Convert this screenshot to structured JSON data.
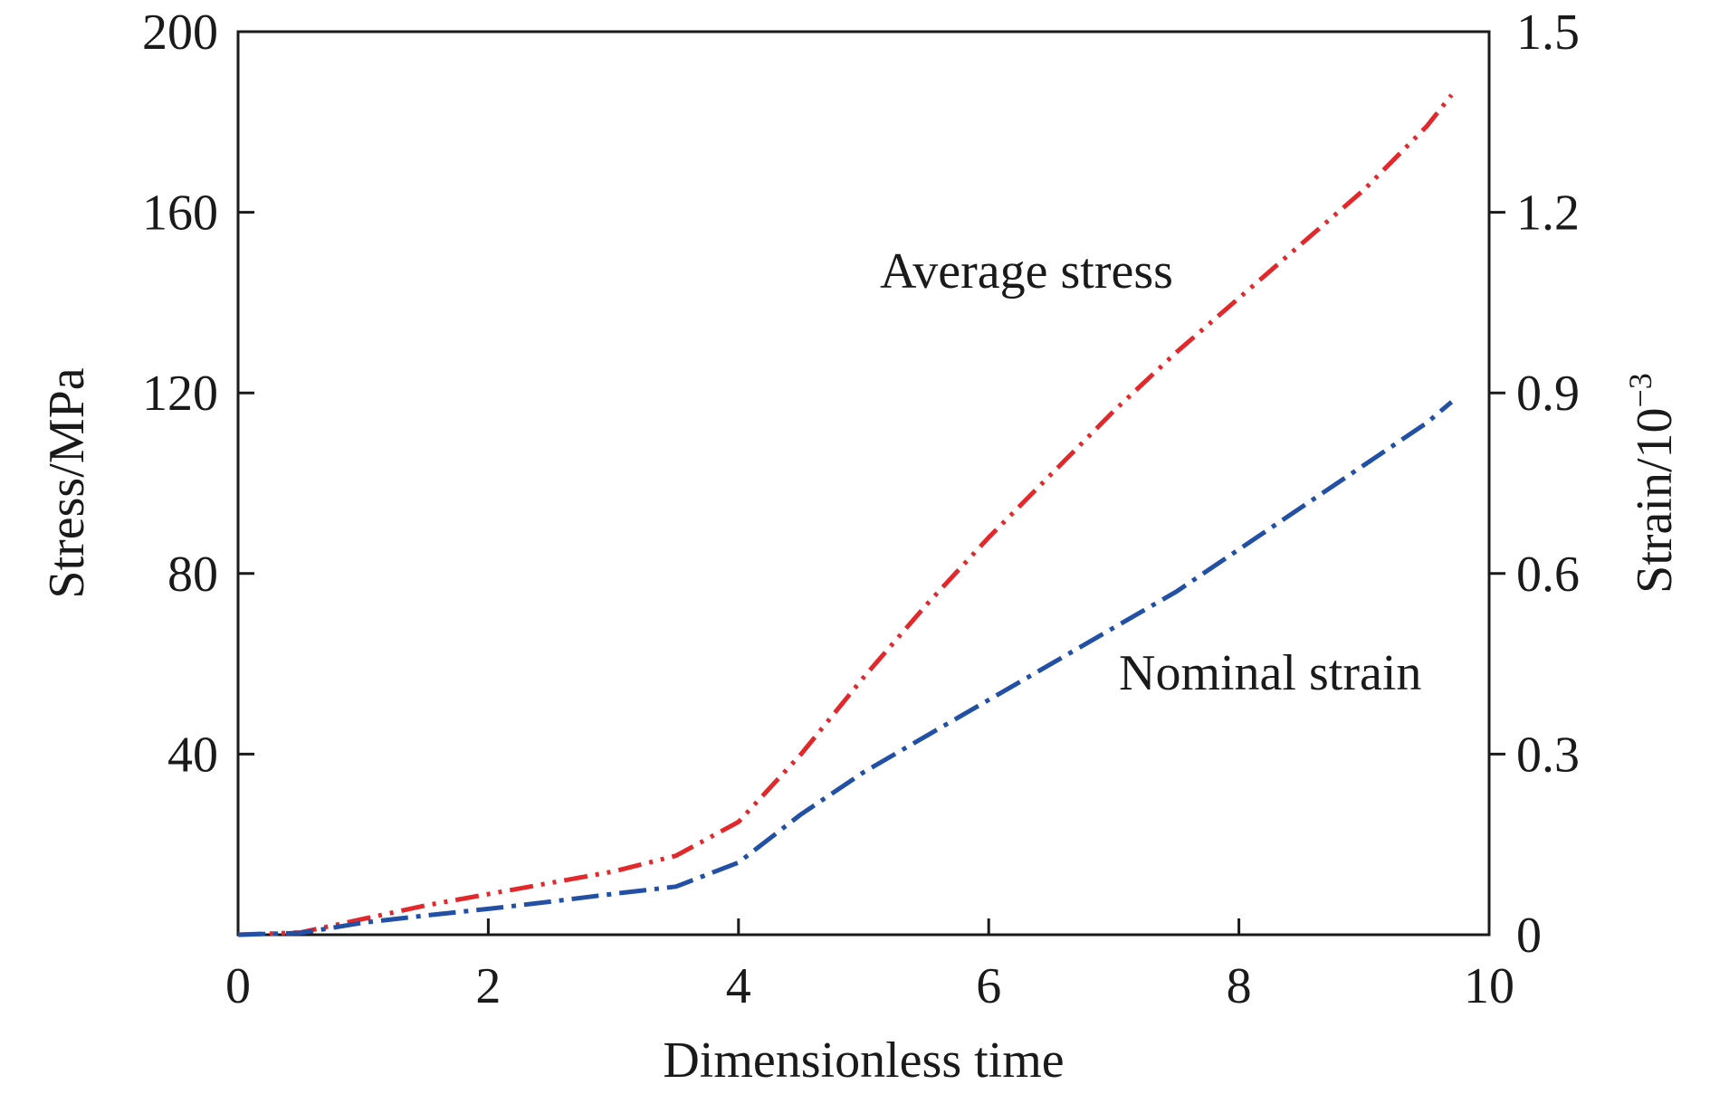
{
  "chart_data": {
    "type": "line",
    "title": "",
    "xlabel": "Dimensionless time",
    "ylabel": "Stress/MPa",
    "y2label_base": "Strain/10",
    "y2label_exp": "−3",
    "xlim": [
      0,
      10
    ],
    "ylim": [
      0,
      200
    ],
    "y2lim": [
      0,
      1.5
    ],
    "x_ticks": [
      "0",
      "2",
      "4",
      "6",
      "8",
      "10"
    ],
    "x_tick_values": [
      0,
      2,
      4,
      6,
      8,
      10
    ],
    "y_ticks": [
      "40",
      "80",
      "120",
      "160",
      "200"
    ],
    "y_tick_values": [
      40,
      80,
      120,
      160,
      200
    ],
    "y2_ticks": [
      "0",
      "0.3",
      "0.6",
      "0.9",
      "1.2",
      "1.5"
    ],
    "y2_tick_values": [
      0,
      0.3,
      0.6,
      0.9,
      1.2,
      1.5
    ],
    "grid": false,
    "legend": "none",
    "series": [
      {
        "name": "Average stress",
        "axis": "left",
        "color": "#e3282c",
        "style": "dash-dot-dot",
        "x": [
          0,
          0.5,
          1,
          1.5,
          2,
          2.5,
          3,
          3.5,
          4,
          4.5,
          5,
          5.5,
          6,
          6.5,
          7,
          7.5,
          8,
          8.5,
          9,
          9.5,
          9.7
        ],
        "y": [
          0,
          0.5,
          3.5,
          6.5,
          9.0,
          11.5,
          14.0,
          17.5,
          25,
          40,
          57,
          73,
          88,
          102,
          116,
          129,
          141,
          153,
          165,
          179,
          186
        ]
      },
      {
        "name": "Nominal strain",
        "axis": "right",
        "color": "#2150a5",
        "style": "dash-dot",
        "x": [
          0,
          0.5,
          1,
          1.5,
          2,
          2.5,
          3,
          3.5,
          4,
          4.5,
          5,
          5.5,
          6,
          6.5,
          7,
          7.5,
          8,
          8.5,
          9,
          9.5,
          9.7
        ],
        "y": [
          0,
          0.003,
          0.02,
          0.032,
          0.043,
          0.055,
          0.068,
          0.08,
          0.12,
          0.2,
          0.27,
          0.33,
          0.39,
          0.45,
          0.51,
          0.57,
          0.64,
          0.71,
          0.78,
          0.85,
          0.885
        ]
      }
    ],
    "annotations": [
      {
        "text": "Average stress",
        "series": "Average stress"
      },
      {
        "text": "Nominal strain",
        "series": "Nominal strain"
      }
    ]
  }
}
